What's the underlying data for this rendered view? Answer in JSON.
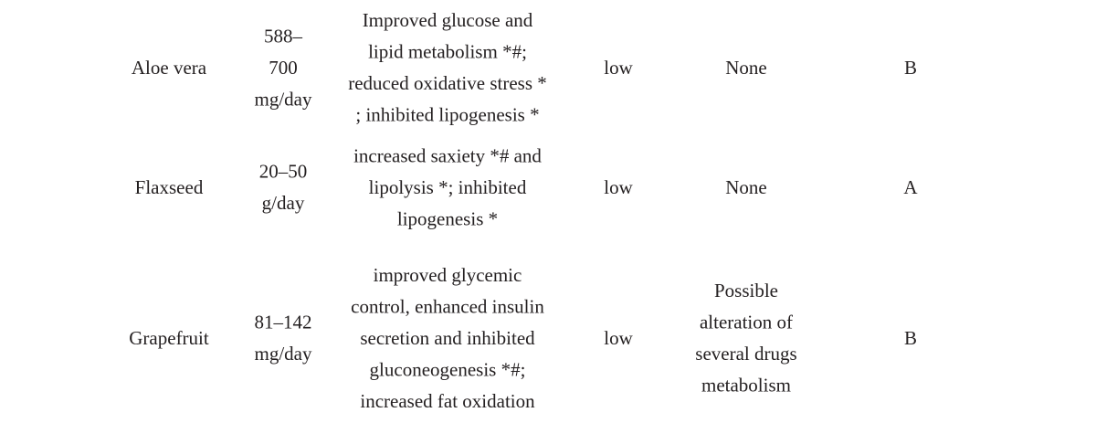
{
  "table": {
    "rows": [
      [
        [
          "Aloe vera"
        ],
        [
          "588–",
          "700",
          "mg/day"
        ],
        [
          "Improved glucose and",
          "lipid metabolism *#;",
          "reduced oxidative stress *",
          "; inhibited lipogenesis *"
        ],
        [
          "low"
        ],
        [
          "None"
        ],
        [
          "B"
        ]
      ],
      [
        [
          "Flaxseed"
        ],
        [
          "20–50",
          "g/day"
        ],
        [
          "increased saxiety *# and",
          "lipolysis *; inhibited",
          "lipogenesis *"
        ],
        [
          "low"
        ],
        [
          "None"
        ],
        [
          "A"
        ]
      ],
      [
        [
          "Grapefruit"
        ],
        [
          "81–142",
          "mg/day"
        ],
        [
          "improved glycemic",
          "control, enhanced insulin",
          "secretion and inhibited",
          "gluconeogenesis *#;",
          "increased fat oxidation"
        ],
        [
          "low"
        ],
        [
          "Possible",
          "alteration of",
          "several drugs",
          "metabolism"
        ],
        [
          "B"
        ]
      ]
    ]
  }
}
